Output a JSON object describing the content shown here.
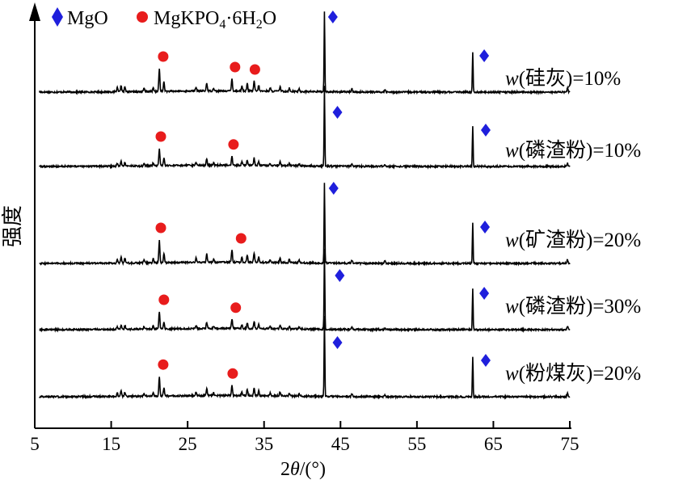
{
  "chart_data": {
    "type": "line",
    "title": "",
    "xlabel": "2θ/(°)",
    "ylabel": "强度",
    "xlim": [
      5,
      75
    ],
    "xticks": [
      {
        "value": 5,
        "label": "5"
      },
      {
        "value": 15,
        "label": "15"
      },
      {
        "value": 25,
        "label": "25"
      },
      {
        "value": 35,
        "label": "35"
      },
      {
        "value": 45,
        "label": "45"
      },
      {
        "value": 55,
        "label": "55"
      },
      {
        "value": 65,
        "label": "65"
      },
      {
        "value": 75,
        "label": "75"
      }
    ],
    "legend": [
      {
        "marker": "diamond",
        "color": "#1f1fdc",
        "label": "MgO"
      },
      {
        "marker": "circle",
        "color": "#e81c1c",
        "label": "MgKPO4·6H2O"
      }
    ],
    "legend_position": "top-left",
    "grid": false,
    "peaks": {
      "common": [
        {
          "x": 15.8,
          "y": 0.05
        },
        {
          "x": 16.3,
          "y": 0.08
        },
        {
          "x": 16.8,
          "y": 0.06
        },
        {
          "x": 19.3,
          "y": 0.04
        },
        {
          "x": 20.5,
          "y": 0.05
        },
        {
          "x": 21.3,
          "y": 0.28
        },
        {
          "x": 21.9,
          "y": 0.12
        },
        {
          "x": 26.1,
          "y": 0.05
        },
        {
          "x": 27.5,
          "y": 0.1
        },
        {
          "x": 28.4,
          "y": 0.04
        },
        {
          "x": 30.8,
          "y": 0.15
        },
        {
          "x": 32.1,
          "y": 0.06
        },
        {
          "x": 32.8,
          "y": 0.09
        },
        {
          "x": 33.7,
          "y": 0.12
        },
        {
          "x": 34.3,
          "y": 0.07
        },
        {
          "x": 35.8,
          "y": 0.04
        },
        {
          "x": 37.1,
          "y": 0.06
        },
        {
          "x": 38.3,
          "y": 0.04
        },
        {
          "x": 39.6,
          "y": 0.03
        },
        {
          "x": 42.9,
          "y": 1.0
        },
        {
          "x": 46.5,
          "y": 0.04
        },
        {
          "x": 50.8,
          "y": 0.03
        },
        {
          "x": 62.3,
          "y": 0.5
        },
        {
          "x": 74.7,
          "y": 0.05
        }
      ],
      "mgo_peaks": [
        42.9,
        62.3,
        74.7
      ]
    },
    "series": [
      {
        "label_prefix": "w",
        "label_text": "(硅灰)=10%",
        "scale": 1.0,
        "diamonds": [
          {
            "x": 44.0,
            "pos": "top"
          },
          {
            "x": 63.8,
            "pos": "upper"
          }
        ],
        "circles": [
          {
            "x": 21.8
          },
          {
            "x": 31.2
          },
          {
            "x": 33.8
          }
        ]
      },
      {
        "label_prefix": "w",
        "label_text": "(磷渣粉)=10%",
        "scale": 0.75,
        "diamonds": [
          {
            "x": 44.6,
            "pos": "upper"
          },
          {
            "x": 64.0,
            "pos": "upper"
          }
        ],
        "circles": [
          {
            "x": 21.5
          },
          {
            "x": 31.0
          }
        ]
      },
      {
        "label_prefix": "w",
        "label_text": "(矿渣粉)=20%",
        "scale": 1.0,
        "diamonds": [
          {
            "x": 44.1,
            "pos": "top"
          },
          {
            "x": 63.9,
            "pos": "upper"
          }
        ],
        "circles": [
          {
            "x": 21.5
          },
          {
            "x": 32.0
          }
        ]
      },
      {
        "label_prefix": "w",
        "label_text": "(磷渣粉)=30%",
        "scale": 0.75,
        "diamonds": [
          {
            "x": 44.9,
            "pos": "upper"
          },
          {
            "x": 63.8,
            "pos": "upper"
          }
        ],
        "circles": [
          {
            "x": 21.9
          },
          {
            "x": 31.3
          }
        ]
      },
      {
        "label_prefix": "w",
        "label_text": "(粉煤灰)=20%",
        "scale": 0.85,
        "diamonds": [
          {
            "x": 44.6,
            "pos": "upper"
          },
          {
            "x": 64.0,
            "pos": "upper"
          }
        ],
        "circles": [
          {
            "x": 21.8
          },
          {
            "x": 30.9
          }
        ]
      }
    ]
  }
}
